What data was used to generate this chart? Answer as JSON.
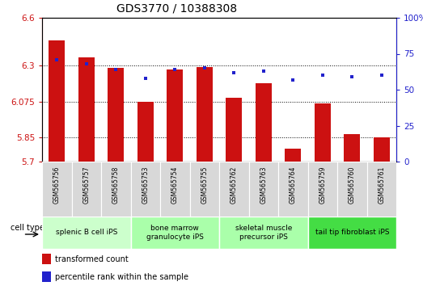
{
  "title": "GDS3770 / 10388308",
  "samples": [
    "GSM565756",
    "GSM565757",
    "GSM565758",
    "GSM565753",
    "GSM565754",
    "GSM565755",
    "GSM565762",
    "GSM565763",
    "GSM565764",
    "GSM565759",
    "GSM565760",
    "GSM565761"
  ],
  "bar_values": [
    6.46,
    6.35,
    6.285,
    6.075,
    6.275,
    6.29,
    6.1,
    6.19,
    5.78,
    6.065,
    5.87,
    5.85
  ],
  "dot_values": [
    71,
    68,
    64,
    58,
    64,
    65,
    62,
    63,
    57,
    60,
    59,
    60
  ],
  "ymin": 5.7,
  "ymax": 6.6,
  "yticks": [
    5.7,
    5.85,
    6.075,
    6.3,
    6.6
  ],
  "ytick_labels": [
    "5.7",
    "5.85",
    "6.075",
    "6.3",
    "6.6"
  ],
  "y2min": 0,
  "y2max": 100,
  "y2ticks": [
    0,
    25,
    50,
    75,
    100
  ],
  "y2tick_labels": [
    "0",
    "25",
    "50",
    "75",
    "100%"
  ],
  "bar_color": "#cc1111",
  "dot_color": "#2222cc",
  "bar_bottom": 5.7,
  "cell_type_groups": [
    {
      "label": "splenic B cell iPS",
      "start": 0,
      "end": 3,
      "color": "#ccffcc"
    },
    {
      "label": "bone marrow\ngranulocyte iPS",
      "start": 3,
      "end": 6,
      "color": "#aaffaa"
    },
    {
      "label": "skeletal muscle\nprecursor iPS",
      "start": 6,
      "end": 9,
      "color": "#aaffaa"
    },
    {
      "label": "tail tip fibroblast iPS",
      "start": 9,
      "end": 12,
      "color": "#44dd44"
    }
  ],
  "cell_type_label": "cell type",
  "legend_bar_label": "transformed count",
  "legend_dot_label": "percentile rank within the sample",
  "sample_bg_color": "#d8d8d8",
  "title_fontsize": 10,
  "tick_fontsize": 7.5,
  "sample_fontsize": 5.5,
  "cell_fontsize": 6.5,
  "legend_fontsize": 7
}
